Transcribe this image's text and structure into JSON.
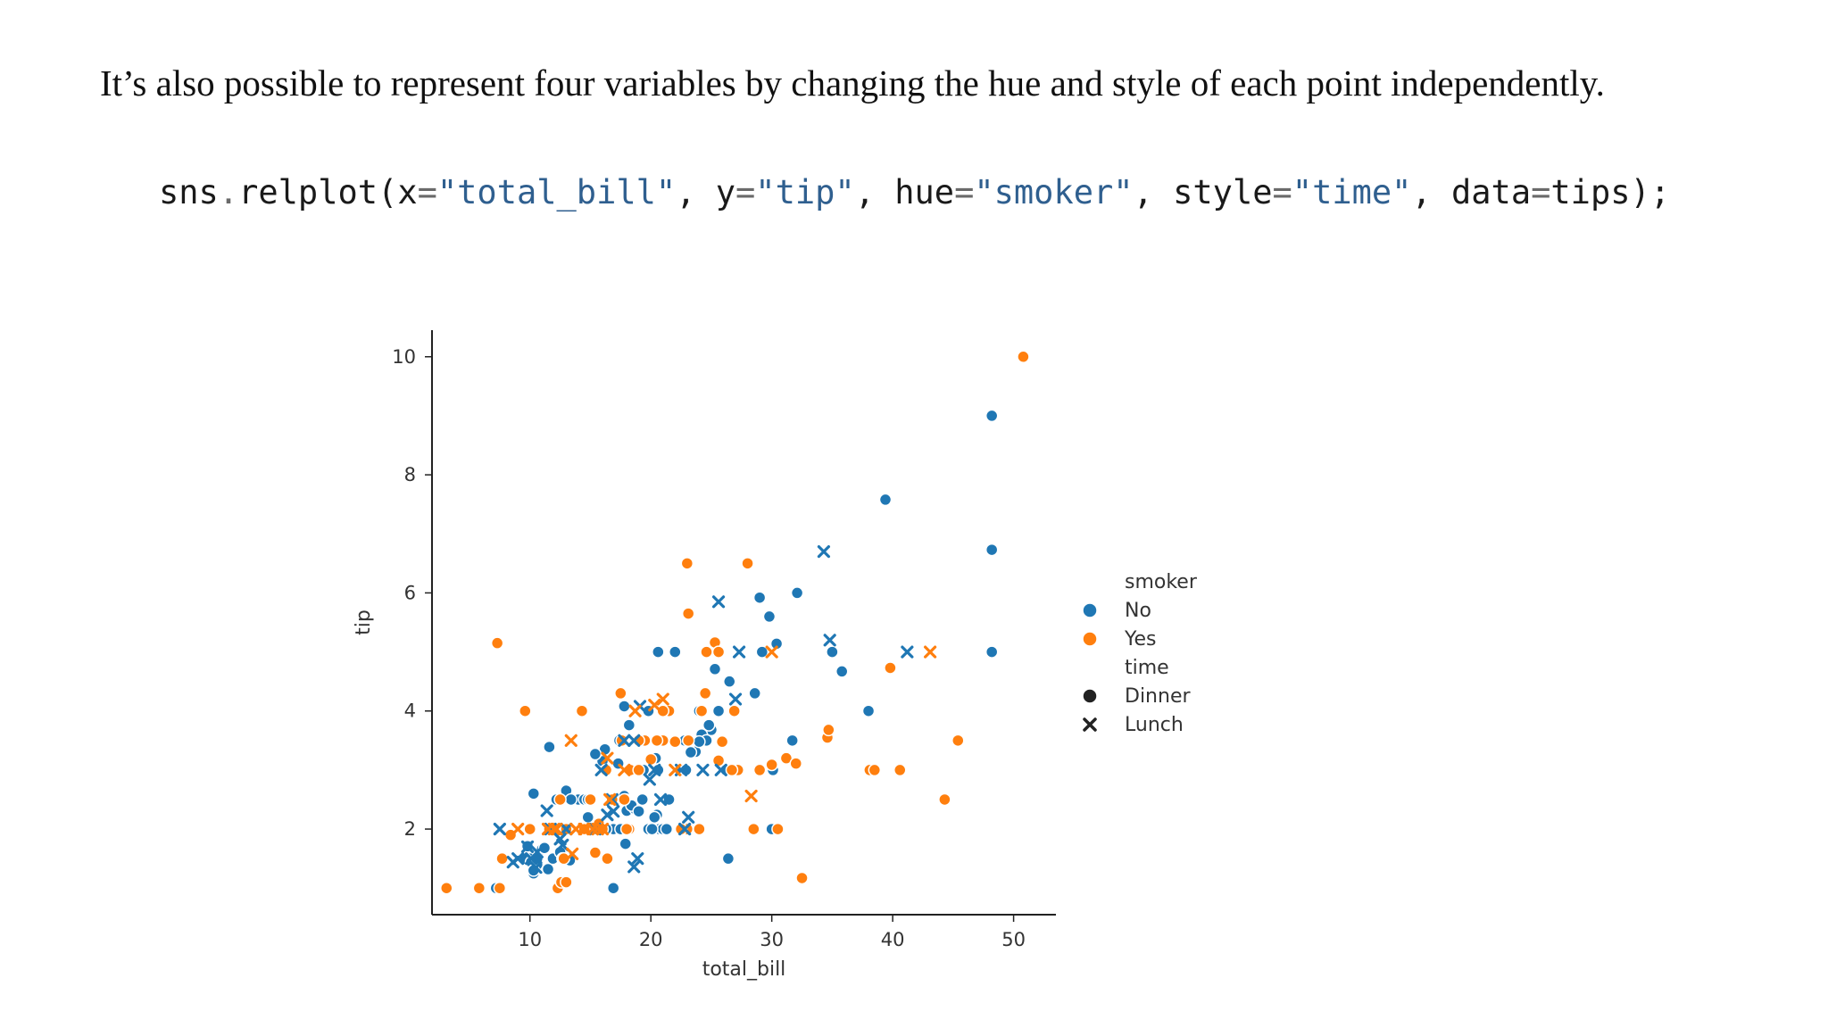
{
  "text": {
    "paragraph": "It’s also possible to represent four variables by changing the hue and style of each point independently.",
    "code": {
      "t1": "sns",
      "t2": ".",
      "t3": "relplot(x",
      "t4": "=",
      "t5": "\"total_bill\"",
      "t6": ", y",
      "t7": "=",
      "t8": "\"tip\"",
      "t9": ", hue",
      "t10": "=",
      "t11": "\"smoker\"",
      "t12": ", style",
      "t13": "=",
      "t14": "\"time\"",
      "t15": ", data",
      "t16": "=",
      "t17": "tips);"
    }
  },
  "chart_data": {
    "type": "scatter",
    "xlabel": "total_bill",
    "ylabel": "tip",
    "xlim": [
      1.9,
      53.5
    ],
    "ylim": [
      0.55,
      10.45
    ],
    "xticks": [
      10,
      20,
      30,
      40,
      50
    ],
    "yticks": [
      2,
      4,
      6,
      8,
      10
    ],
    "grid": false,
    "legend_position": "right",
    "colors": {
      "No": "#1f77b4",
      "Yes": "#ff7f0e"
    },
    "legend": [
      {
        "kind": "title",
        "label": "smoker"
      },
      {
        "kind": "hue",
        "label": "No",
        "color": "#1f77b4"
      },
      {
        "kind": "hue",
        "label": "Yes",
        "color": "#ff7f0e"
      },
      {
        "kind": "title",
        "label": "time"
      },
      {
        "kind": "style",
        "label": "Dinner",
        "marker": "circle"
      },
      {
        "kind": "style",
        "label": "Lunch",
        "marker": "x"
      }
    ],
    "series": [
      {
        "name": "No",
        "time": "Dinner",
        "marker": "circle",
        "color": "#1f77b4",
        "x": [
          48.2,
          48.2,
          48.2,
          39.4,
          29.0,
          29.8,
          32.1,
          30.4,
          29.2,
          20.6,
          22.0,
          25.3,
          24.0,
          25.6,
          26.5,
          28.6,
          35.0,
          35.8,
          38.0,
          31.7,
          30.1,
          25.0,
          24.2,
          24.6,
          24.8,
          23.7,
          23.2,
          22.5,
          21.0,
          17.8,
          18.2,
          19.8,
          16.2,
          17.4,
          20.4,
          20.6,
          19.4,
          18.3,
          17.3,
          16.0,
          21.4,
          22.8,
          22.9,
          23.3,
          24.0,
          14.0,
          14.8,
          15.0,
          15.5,
          16.9,
          17.5,
          17.8,
          18.0,
          18.7,
          19.3,
          19.8,
          20.5,
          20.7,
          21.0,
          21.3,
          21.5,
          11.6,
          10.3,
          12.2,
          13.0,
          13.4,
          14.5,
          14.8,
          15.4,
          16.3,
          17.9,
          18.4,
          19.0,
          20.1,
          20.3,
          10.0,
          10.3,
          10.6,
          11.0,
          11.5,
          11.9,
          12.5,
          13.4,
          9.6,
          9.8,
          10.1,
          10.3,
          10.6,
          11.2,
          12.7,
          13.3,
          7.2,
          16.9,
          17.9,
          26.4,
          28.5,
          30.0,
          23.0,
          26.2
        ],
        "y": [
          9.0,
          6.73,
          5.0,
          7.58,
          5.92,
          5.6,
          6.0,
          5.14,
          5.0,
          5.0,
          5.0,
          4.71,
          4.0,
          4.0,
          4.5,
          4.3,
          5.0,
          4.67,
          4.0,
          3.5,
          3.0,
          3.68,
          3.6,
          3.5,
          3.76,
          3.31,
          3.3,
          3.0,
          3.5,
          4.08,
          3.76,
          4.0,
          3.35,
          3.5,
          3.2,
          3.0,
          3.0,
          3.0,
          3.11,
          3.15,
          2.5,
          3.5,
          3.0,
          3.3,
          3.48,
          2.5,
          2.2,
          2.5,
          2.0,
          2.0,
          2.0,
          2.56,
          2.31,
          2.34,
          2.5,
          2.0,
          2.24,
          2.0,
          2.0,
          2.0,
          2.5,
          3.39,
          2.6,
          2.5,
          2.65,
          2.5,
          2.5,
          2.5,
          3.27,
          2.0,
          2.5,
          2.4,
          2.3,
          2.0,
          2.2,
          1.5,
          1.25,
          1.4,
          1.66,
          1.32,
          1.5,
          1.61,
          1.5,
          1.5,
          1.71,
          1.44,
          1.3,
          1.5,
          1.68,
          1.5,
          1.47,
          1.0,
          1.0,
          1.75,
          1.5,
          2.0,
          2.0,
          2.0,
          3.0
        ]
      },
      {
        "name": "Yes",
        "time": "Dinner",
        "marker": "circle",
        "color": "#ff7f0e",
        "x": [
          50.8,
          3.1,
          5.8,
          7.3,
          7.5,
          9.6,
          12.3,
          12.6,
          14.3,
          15.0,
          15.4,
          16.3,
          17.5,
          16.8,
          18.3,
          19.5,
          21.0,
          22.0,
          23.1,
          24.6,
          25.3,
          25.9,
          23.0,
          27.0,
          28.0,
          29.0,
          30.0,
          31.2,
          32.0,
          34.6,
          38.1,
          38.5,
          40.6,
          39.8,
          44.3,
          45.4,
          34.7,
          13.0,
          12.8,
          7.7,
          8.4,
          10.0,
          11.6,
          12.5,
          15.7,
          16.0,
          17.8,
          18.2,
          19.0,
          20.0,
          21.5,
          23.0,
          24.0,
          25.6,
          27.2,
          26.9,
          28.5,
          13.0,
          14.5,
          16.4,
          17.6,
          19.0,
          20.5,
          23.1,
          24.2,
          26.7,
          32.5,
          25.6,
          24.5,
          21.0,
          18.0,
          22.5,
          30.5
        ],
        "y": [
          10.0,
          1.0,
          1.0,
          5.15,
          1.0,
          4.0,
          1.0,
          1.1,
          4.0,
          2.5,
          1.6,
          3.0,
          4.3,
          2.5,
          3.0,
          3.5,
          3.5,
          3.48,
          5.65,
          5.0,
          5.16,
          3.48,
          6.5,
          3.0,
          6.5,
          3.0,
          3.09,
          3.2,
          3.11,
          3.55,
          3.0,
          3.0,
          3.0,
          4.73,
          2.5,
          3.5,
          3.68,
          1.1,
          1.5,
          1.5,
          1.9,
          2.0,
          2.0,
          2.5,
          2.09,
          2.0,
          2.5,
          2.0,
          3.0,
          3.18,
          4.0,
          2.0,
          2.0,
          3.16,
          3.0,
          4.0,
          2.0,
          2.0,
          2.0,
          1.5,
          3.5,
          3.5,
          3.5,
          3.5,
          4.0,
          3.0,
          1.17,
          5.0,
          4.3,
          4.0,
          2.0,
          2.0,
          2.0
        ]
      },
      {
        "name": "No",
        "time": "Lunch",
        "marker": "x",
        "color": "#1f77b4",
        "x": [
          34.3,
          25.6,
          27.3,
          34.8,
          41.2,
          27.0,
          24.3,
          25.8,
          19.1,
          17.8,
          18.6,
          20.3,
          20.8,
          19.9,
          16.8,
          15.9,
          15.4,
          13.0,
          11.7,
          12.7,
          7.5,
          8.6,
          11.4,
          12.5,
          10.6,
          9.8,
          10.1,
          9.0,
          10.5,
          16.4,
          16.9,
          18.6,
          18.9,
          22.8,
          23.1,
          22.5
        ],
        "y": [
          6.7,
          5.85,
          5.0,
          5.2,
          5.0,
          4.2,
          3.0,
          3.0,
          4.08,
          3.5,
          3.5,
          3.0,
          2.5,
          2.84,
          2.5,
          3.0,
          2.0,
          2.0,
          2.0,
          1.73,
          2.0,
          1.44,
          2.31,
          1.83,
          1.61,
          1.7,
          1.5,
          1.5,
          1.35,
          2.24,
          2.3,
          1.36,
          1.5,
          2.0,
          2.2,
          3.0
        ]
      },
      {
        "name": "Yes",
        "time": "Lunch",
        "marker": "x",
        "color": "#ff7f0e",
        "x": [
          43.1,
          30.0,
          28.3,
          21.0,
          16.6,
          18.7,
          13.4,
          12.2,
          13.8,
          14.5,
          15.2,
          15.6,
          16.0,
          17.8,
          16.4,
          20.3,
          22.0,
          11.5,
          12.0,
          9.0,
          13.5
        ],
        "y": [
          5.0,
          5.0,
          2.56,
          4.2,
          2.5,
          4.0,
          3.5,
          2.0,
          2.0,
          2.0,
          2.0,
          2.0,
          2.0,
          3.0,
          3.2,
          4.1,
          3.0,
          2.0,
          2.0,
          2.0,
          1.58
        ]
      }
    ]
  }
}
